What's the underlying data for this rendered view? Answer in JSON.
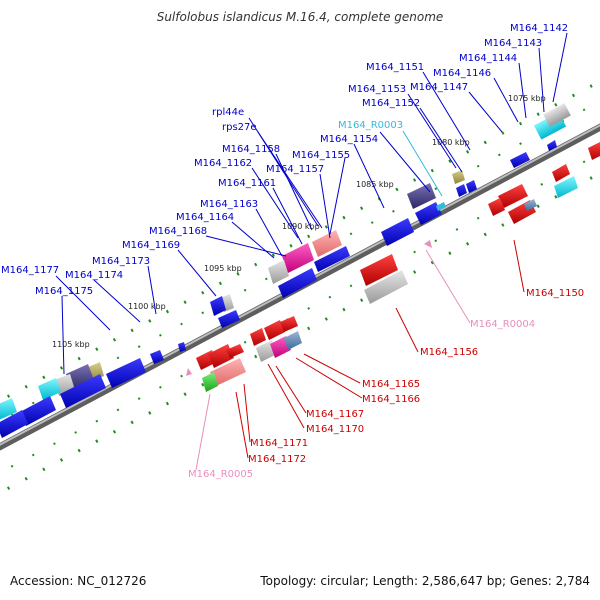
{
  "title": "Sulfolobus islandicus M.16.4, complete genome",
  "footer": {
    "accession": "Accession: NC_012726",
    "summary": "Topology: circular; Length: 2,586,647 bp; Genes: 2,784"
  },
  "colors": {
    "backbone": "#808080",
    "label_blue": "#0000cc",
    "label_red": "#cc0000",
    "label_pink": "#e88fbf",
    "label_cyan": "#33bbdd",
    "tick_dot": "#228b22",
    "forward_gene": "#0000dd",
    "reverse_gene": "#dd0000"
  },
  "ticks": [
    {
      "label": "1075 kbp"
    },
    {
      "label": "1080 kbp"
    },
    {
      "label": "1085 kbp"
    },
    {
      "label": "1090 kbp"
    },
    {
      "label": "1095 kbp"
    },
    {
      "label": "1100 kbp"
    },
    {
      "label": "1105 kbp"
    }
  ],
  "labels_top": [
    {
      "text": "M164_1142",
      "color": "blue"
    },
    {
      "text": "M164_1143",
      "color": "blue"
    },
    {
      "text": "M164_1144",
      "color": "blue"
    },
    {
      "text": "M164_1146",
      "color": "blue"
    },
    {
      "text": "M164_1151",
      "color": "blue"
    },
    {
      "text": "M164_1147",
      "color": "blue"
    },
    {
      "text": "M164_1153",
      "color": "blue"
    },
    {
      "text": "M164_1152",
      "color": "blue"
    },
    {
      "text": "rpl44e",
      "color": "blue"
    },
    {
      "text": "rps27e",
      "color": "blue"
    },
    {
      "text": "M164_R0003",
      "color": "cyan"
    },
    {
      "text": "M164_1154",
      "color": "blue"
    },
    {
      "text": "M164_1158",
      "color": "blue"
    },
    {
      "text": "M164_1155",
      "color": "blue"
    },
    {
      "text": "M164_1162",
      "color": "blue"
    },
    {
      "text": "M164_1157",
      "color": "blue"
    },
    {
      "text": "M164_1161",
      "color": "blue"
    },
    {
      "text": "M164_1163",
      "color": "blue"
    },
    {
      "text": "M164_1164",
      "color": "blue"
    },
    {
      "text": "M164_1168",
      "color": "blue"
    },
    {
      "text": "M164_1169",
      "color": "blue"
    },
    {
      "text": "M164_1173",
      "color": "blue"
    },
    {
      "text": "M164_1177",
      "color": "blue"
    },
    {
      "text": "M164_1174",
      "color": "blue"
    },
    {
      "text": "M164_1175",
      "color": "blue"
    }
  ],
  "labels_bottom": [
    {
      "text": "M164_1150",
      "color": "red"
    },
    {
      "text": "M164_R0004",
      "color": "pink"
    },
    {
      "text": "M164_1156",
      "color": "red"
    },
    {
      "text": "M164_1165",
      "color": "red"
    },
    {
      "text": "M164_1166",
      "color": "red"
    },
    {
      "text": "M164_1167",
      "color": "red"
    },
    {
      "text": "M164_1170",
      "color": "red"
    },
    {
      "text": "M164_1171",
      "color": "red"
    },
    {
      "text": "M164_1172",
      "color": "red"
    },
    {
      "text": "M164_R0005",
      "color": "pink"
    }
  ]
}
